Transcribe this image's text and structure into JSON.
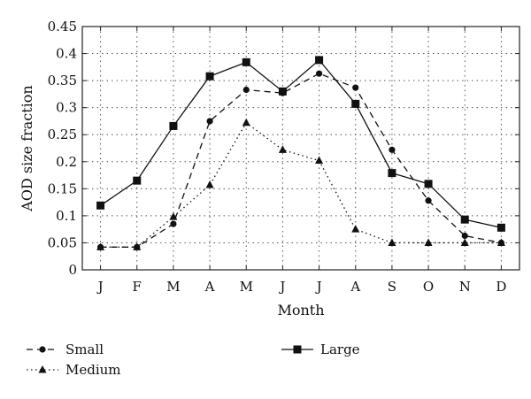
{
  "chart_data": {
    "type": "line",
    "xlabel": "Month",
    "ylabel": "AOD size fraction",
    "categories": [
      "J",
      "F",
      "M",
      "A",
      "M",
      "J",
      "J",
      "A",
      "S",
      "O",
      "N",
      "D"
    ],
    "ylim": [
      0,
      0.45
    ],
    "yticks": [
      "0",
      "0.05",
      "0.1",
      "0.15",
      "0.2",
      "0.25",
      "0.3",
      "0.35",
      "0.4",
      "0.45"
    ],
    "grid": true,
    "legend_position": "bottom",
    "series": [
      {
        "name": "Small",
        "line": "dashed",
        "marker": "circle",
        "values": [
          0.042,
          0.042,
          0.085,
          0.275,
          0.333,
          0.327,
          0.363,
          0.337,
          0.222,
          0.128,
          0.063,
          0.05
        ]
      },
      {
        "name": "Medium",
        "line": "dotted",
        "marker": "triangle",
        "values": [
          0.042,
          0.042,
          0.098,
          0.157,
          0.272,
          0.222,
          0.202,
          0.075,
          0.05,
          0.05,
          0.05,
          0.05
        ]
      },
      {
        "name": "Large",
        "line": "solid",
        "marker": "square",
        "values": [
          0.119,
          0.165,
          0.266,
          0.358,
          0.384,
          0.33,
          0.388,
          0.307,
          0.179,
          0.159,
          0.093,
          0.078
        ]
      }
    ]
  }
}
